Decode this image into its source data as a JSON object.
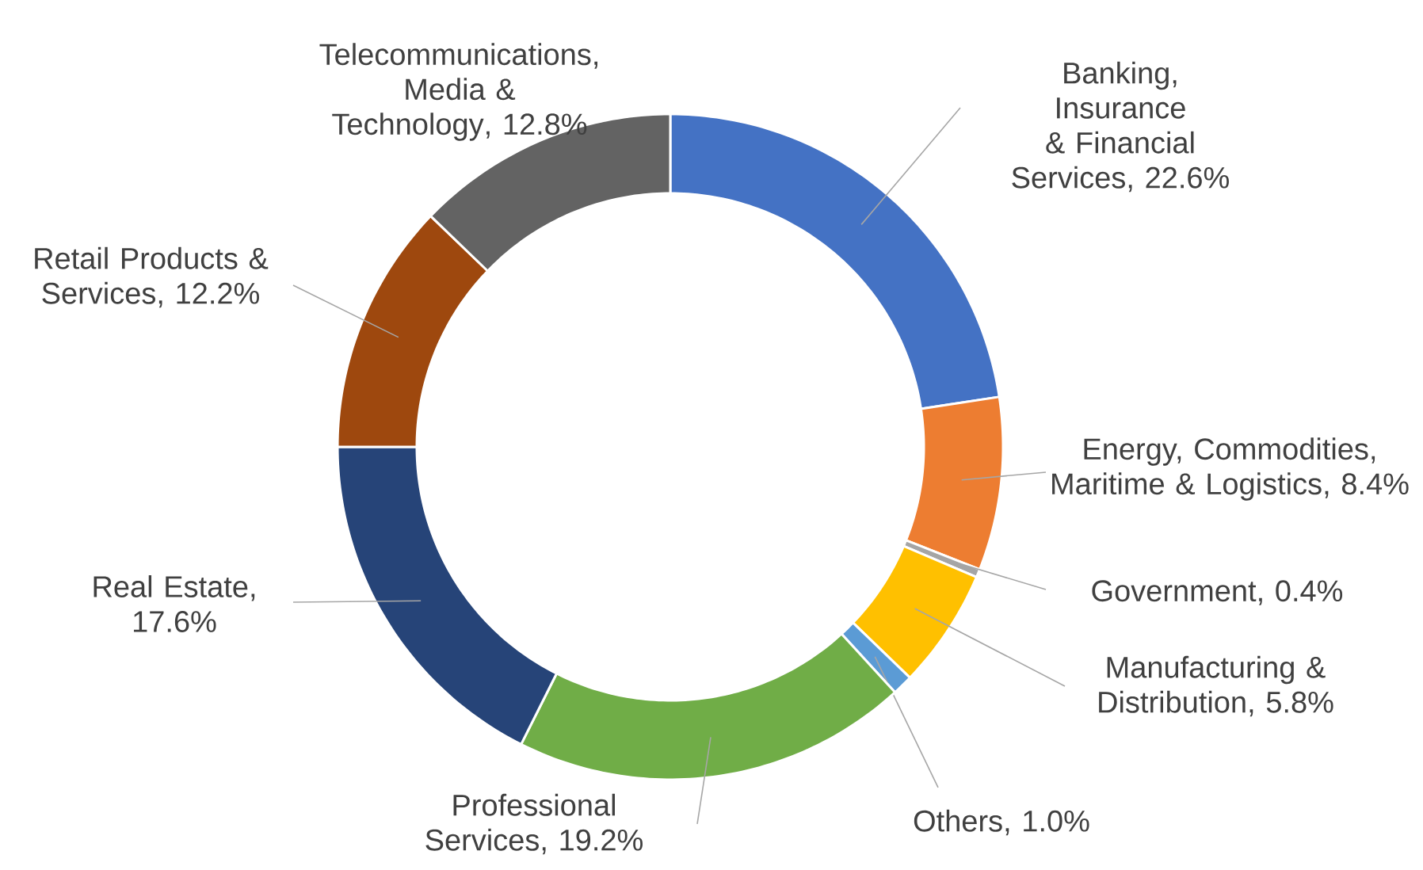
{
  "chart_data": {
    "type": "donut",
    "categories": [
      "Banking, Insurance & Financial Services",
      "Energy, Commodities, Maritime & Logistics",
      "Government",
      "Manufacturing & Distribution",
      "Others",
      "Professional Services",
      "Real Estate",
      "Retail Products & Services",
      "Telecommunications, Media & Technology"
    ],
    "values": [
      22.6,
      8.4,
      0.4,
      5.8,
      1.0,
      19.2,
      17.6,
      12.2,
      12.8
    ],
    "value_labels": [
      ", 22.6%",
      ", 8.4%",
      ", 0.4%",
      ", 5.8%",
      ", 1.0%",
      ", 19.2%",
      ", 17.6%",
      ", 12.2%",
      ", 12.8%"
    ],
    "colors": [
      "#4472c4",
      "#ed7d31",
      "#a5a5a5",
      "#ffc000",
      "#5b9bd5",
      "#70ad47",
      "#264478",
      "#9e480e",
      "#636363"
    ]
  }
}
